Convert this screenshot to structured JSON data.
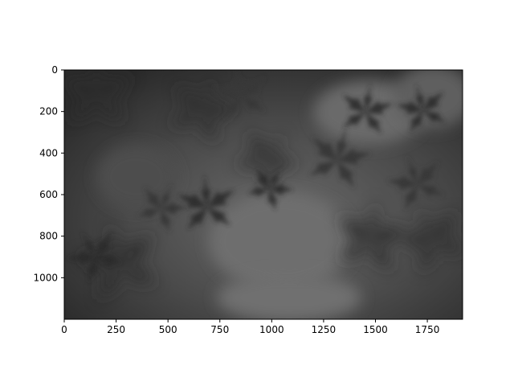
{
  "chart_data": {
    "type": "image",
    "title": "",
    "xlabel": "",
    "ylabel": "",
    "xlim": [
      0,
      1920
    ],
    "ylim": [
      1200,
      0
    ],
    "x_ticks": [
      0,
      250,
      500,
      750,
      1000,
      1250,
      1500,
      1750
    ],
    "y_ticks": [
      0,
      200,
      400,
      600,
      800,
      1000
    ],
    "image_content": "grayscale photograph of maple leaves",
    "colormap": "gray",
    "grid": false
  }
}
